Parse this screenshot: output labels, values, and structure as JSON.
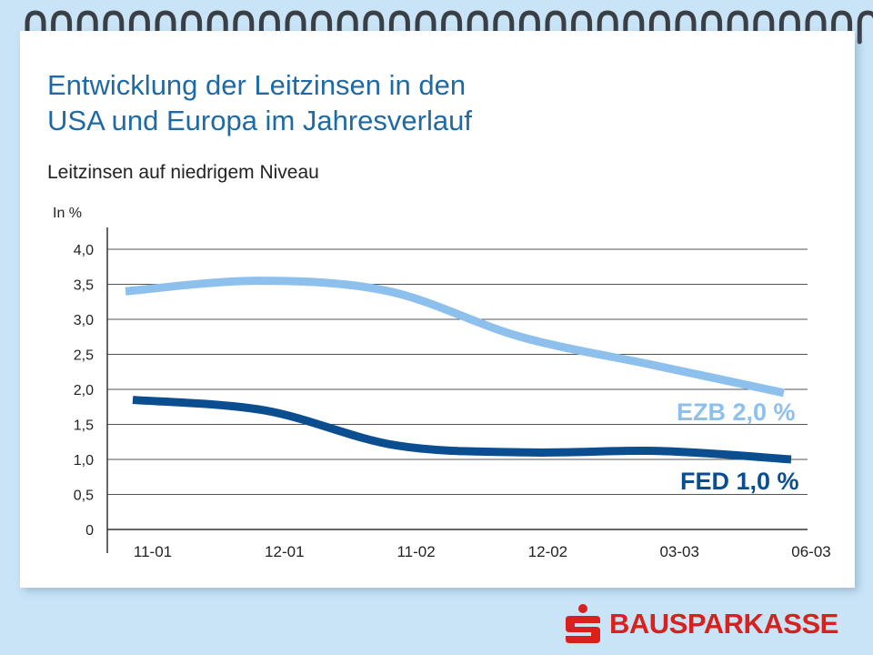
{
  "slide": {
    "title_line1": "Entwicklung der Leitzinsen in den",
    "title_line2": "USA und Europa im Jahresverlauf",
    "subtitle": "Leitzinsen auf niedrigem Niveau",
    "brand": "BAUSPARKASSE",
    "colors": {
      "accent": "#1f6aa5",
      "ezb": "#8ec0ee",
      "fed": "#0b4e8f",
      "brand": "#d9201d",
      "background": "#c9e4f7"
    },
    "icons": [
      "binder-rings-icon",
      "sparkasse-logo-icon"
    ]
  },
  "chart_data": {
    "type": "line",
    "categories": [
      "11-01",
      "12-01",
      "11-02",
      "12-02",
      "03-03",
      "06-03"
    ],
    "ylabel": "In %",
    "ylim": [
      0,
      4.0
    ],
    "yticks": [
      "0",
      "0,5",
      "1,0",
      "1,5",
      "2,0",
      "2,5",
      "3,0",
      "3,5",
      "4,0"
    ],
    "grid": true,
    "series": [
      {
        "name": "EZB",
        "label": "EZB 2,0 %",
        "color": "#8ec0ee",
        "values": [
          3.4,
          3.55,
          3.4,
          2.75,
          2.35,
          1.95
        ]
      },
      {
        "name": "FED",
        "label": "FED 1,0 %",
        "color": "#0b4e8f",
        "values": [
          1.85,
          1.7,
          1.2,
          1.1,
          1.12,
          1.0
        ]
      }
    ]
  }
}
